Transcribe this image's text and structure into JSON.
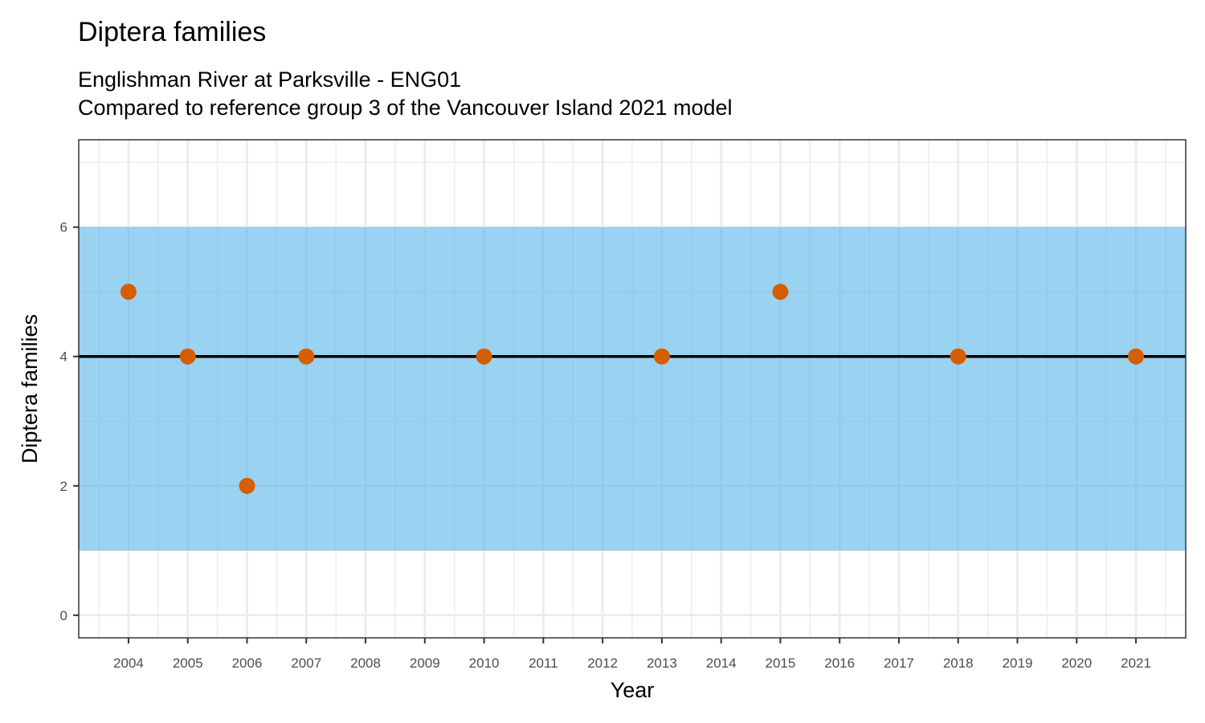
{
  "chart_data": {
    "type": "scatter",
    "title": "Diptera families",
    "subtitle_lines": [
      "Englishman River at Parksville - ENG01",
      "Compared to reference group 3 of the Vancouver Island 2021 model"
    ],
    "xlabel": "Year",
    "ylabel": "Diptera families",
    "xlim": [
      2003.16,
      2021.84
    ],
    "ylim": [
      -0.35,
      7.35
    ],
    "x_ticks": [
      2004,
      2005,
      2006,
      2007,
      2008,
      2009,
      2010,
      2011,
      2012,
      2013,
      2014,
      2015,
      2016,
      2017,
      2018,
      2019,
      2020,
      2021
    ],
    "y_ticks": [
      0,
      2,
      4,
      6
    ],
    "grid": true,
    "reference_band": {
      "lower": 1,
      "upper": 6,
      "color": "#56B4E9"
    },
    "reference_line": 4,
    "point_color": "#D55E00",
    "points": [
      {
        "x": 2004,
        "y": 5
      },
      {
        "x": 2005,
        "y": 4
      },
      {
        "x": 2006,
        "y": 2
      },
      {
        "x": 2007,
        "y": 4
      },
      {
        "x": 2010,
        "y": 4
      },
      {
        "x": 2013,
        "y": 4
      },
      {
        "x": 2015,
        "y": 5
      },
      {
        "x": 2018,
        "y": 4
      },
      {
        "x": 2021,
        "y": 4
      }
    ]
  }
}
